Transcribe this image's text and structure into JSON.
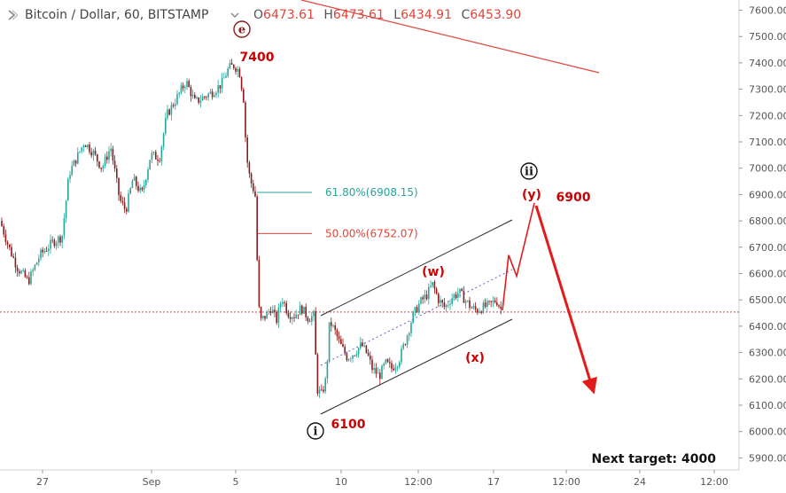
{
  "header": {
    "symbol": "Bitcoin / Dollar, 60, BITSTAMP",
    "open_label": "O",
    "open": "6473.61",
    "high_label": "H",
    "high": "6473.61",
    "low_label": "L",
    "low": "6434.91",
    "close_label": "C",
    "close": "6453.90"
  },
  "colors": {
    "up": "#26a69a",
    "down": "#8b1a1a",
    "label_red": "#cc0000",
    "fib618": "#26a69a",
    "fib50": "#e0453a",
    "axis_text": "#555555"
  },
  "chart_data": {
    "type": "candlestick",
    "y_axis": {
      "range": [
        5860,
        7660
      ],
      "ticks": [
        "5900.00",
        "6000.00",
        "6100.00",
        "6200.00",
        "6300.00",
        "6400.00",
        "6500.00",
        "6600.00",
        "6700.00",
        "6800.00",
        "6900.00",
        "7000.00",
        "7100.00",
        "7200.00",
        "7300.00",
        "7400.00",
        "7500.00",
        "7600.00"
      ]
    },
    "x_axis": {
      "ticks": [
        "27",
        "Sep",
        "5",
        "10",
        "12:00",
        "17",
        "12:00",
        "24",
        "12:00"
      ]
    },
    "current_price": 6453.9,
    "fib_levels": [
      {
        "label": "61.80%(6908.15)",
        "value": 6908.15
      },
      {
        "label": "50.00%(6752.07)",
        "value": 6752.07
      }
    ],
    "wave_labels": [
      {
        "text": "e",
        "circled": true
      },
      {
        "text": "7400"
      },
      {
        "text": "6100"
      },
      {
        "text": "i",
        "circled": true
      },
      {
        "text": "(w)"
      },
      {
        "text": "(x)"
      },
      {
        "text": "ii",
        "circled": true
      },
      {
        "text": "(y)"
      },
      {
        "text": "6900"
      }
    ],
    "annotation": "Next target:  4000",
    "keypoints": [
      [
        0,
        6800
      ],
      [
        10,
        6700
      ],
      [
        20,
        6620
      ],
      [
        32,
        6570
      ],
      [
        45,
        6670
      ],
      [
        60,
        6720
      ],
      [
        70,
        6740
      ],
      [
        78,
        6980
      ],
      [
        88,
        7050
      ],
      [
        95,
        7100
      ],
      [
        105,
        7060
      ],
      [
        115,
        7000
      ],
      [
        125,
        7080
      ],
      [
        135,
        6880
      ],
      [
        142,
        6840
      ],
      [
        150,
        6960
      ],
      [
        160,
        6900
      ],
      [
        170,
        7050
      ],
      [
        180,
        7040
      ],
      [
        188,
        7200
      ],
      [
        200,
        7270
      ],
      [
        210,
        7330
      ],
      [
        220,
        7250
      ],
      [
        230,
        7270
      ],
      [
        240,
        7290
      ],
      [
        250,
        7320
      ],
      [
        258,
        7380
      ],
      [
        264,
        7390
      ],
      [
        270,
        7370
      ],
      [
        275,
        7260
      ],
      [
        278,
        7050
      ],
      [
        282,
        6960
      ],
      [
        286,
        6920
      ],
      [
        289,
        6880
      ],
      [
        291,
        6500
      ],
      [
        294,
        6420
      ],
      [
        300,
        6440
      ],
      [
        306,
        6470
      ],
      [
        312,
        6420
      ],
      [
        318,
        6510
      ],
      [
        325,
        6450
      ],
      [
        332,
        6440
      ],
      [
        340,
        6470
      ],
      [
        348,
        6430
      ],
      [
        354,
        6440
      ],
      [
        358,
        6160
      ],
      [
        363,
        6140
      ],
      [
        368,
        6200
      ],
      [
        372,
        6420
      ],
      [
        378,
        6380
      ],
      [
        384,
        6330
      ],
      [
        392,
        6280
      ],
      [
        400,
        6300
      ],
      [
        408,
        6330
      ],
      [
        415,
        6290
      ],
      [
        420,
        6240
      ],
      [
        428,
        6210
      ],
      [
        435,
        6260
      ],
      [
        442,
        6240
      ],
      [
        450,
        6270
      ],
      [
        458,
        6350
      ],
      [
        466,
        6440
      ],
      [
        474,
        6490
      ],
      [
        482,
        6520
      ],
      [
        488,
        6560
      ],
      [
        495,
        6500
      ],
      [
        502,
        6470
      ],
      [
        510,
        6510
      ],
      [
        518,
        6530
      ],
      [
        525,
        6500
      ],
      [
        532,
        6470
      ],
      [
        538,
        6460
      ],
      [
        544,
        6470
      ],
      [
        552,
        6480
      ],
      [
        560,
        6500
      ],
      [
        567,
        6454
      ]
    ],
    "projection": [
      [
        567,
        6460
      ],
      [
        574,
        6670
      ],
      [
        583,
        6590
      ],
      [
        603,
        6868
      ]
    ]
  }
}
